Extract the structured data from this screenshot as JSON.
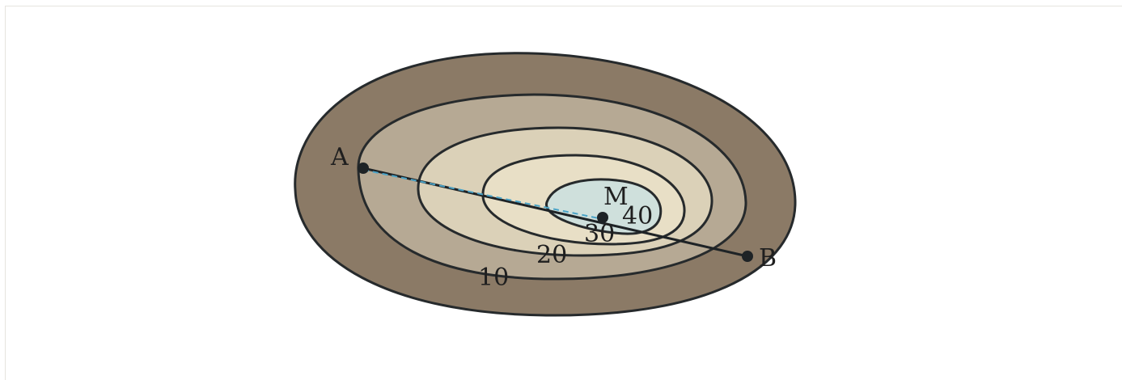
{
  "diagram": {
    "points": {
      "a": {
        "label": "A"
      },
      "b": {
        "label": "B"
      },
      "m": {
        "label": "M"
      }
    },
    "contours": [
      {
        "label": "10",
        "fill": "#8b7a66"
      },
      {
        "label": "20",
        "fill": "#b6a994"
      },
      {
        "label": "30",
        "fill": "#dbd1b8"
      },
      {
        "label": "",
        "fill": "#e8dfc6"
      },
      {
        "label": "40",
        "fill": "#cfe0dc"
      }
    ],
    "colors": {
      "stroke": "#262a2c",
      "segment": "#1e2326",
      "dashed_segment": "#4aa3c7",
      "point": "#1e2326"
    }
  }
}
